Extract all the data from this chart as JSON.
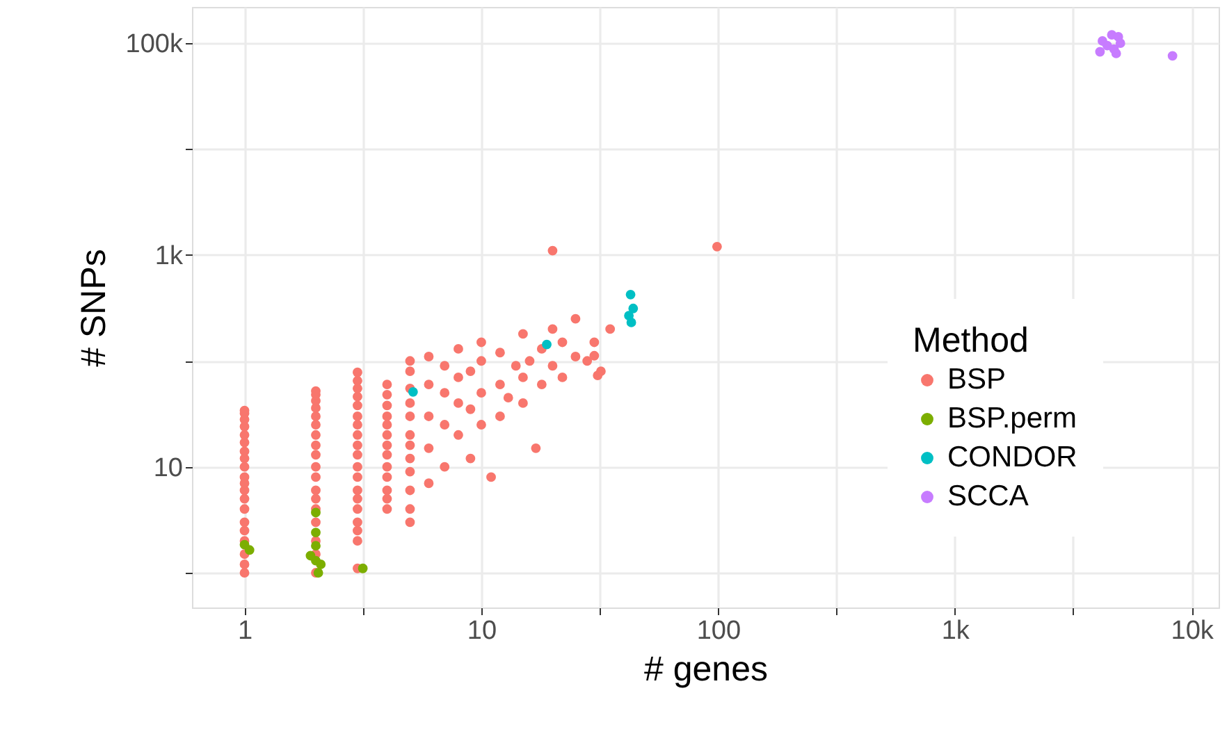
{
  "chart_data": {
    "type": "scatter",
    "xlabel": "# genes",
    "ylabel": "# SNPs",
    "legend_title": "Method",
    "legend": "right",
    "grid": true,
    "marker": "circle",
    "log": "xy",
    "xlim": [
      0.6,
      13000
    ],
    "ylim": [
      0.47,
      220000
    ],
    "xticks": [
      1,
      {
        "value": 3.16,
        "label": null
      },
      10,
      {
        "value": 31.6,
        "label": null
      },
      100,
      {
        "value": 316,
        "label": null
      },
      {
        "value": 1000,
        "label": "1k"
      },
      {
        "value": 3162,
        "label": null
      },
      {
        "value": 10000,
        "label": "10k"
      }
    ],
    "yticks": [
      {
        "value": 1,
        "label": null
      },
      10,
      {
        "value": 100,
        "label": null
      },
      {
        "value": 1000,
        "label": "1k"
      },
      {
        "value": 10000,
        "label": null
      },
      {
        "value": 100000,
        "label": "100k"
      }
    ],
    "series": [
      {
        "name": "BSP",
        "color": "#f8766d",
        "x": [
          1,
          1,
          1,
          1,
          1,
          1,
          1,
          1,
          1,
          1,
          1,
          1,
          1,
          1,
          1,
          1,
          1,
          1,
          1,
          1,
          2,
          2,
          2,
          2,
          2,
          2,
          2,
          2,
          2,
          2,
          2,
          2,
          2,
          2,
          2,
          2,
          2,
          2,
          3,
          3,
          3,
          3,
          3,
          3,
          3,
          3,
          3,
          3,
          3,
          3,
          3,
          3,
          3,
          3,
          3,
          3,
          3,
          4,
          4,
          4,
          4,
          4,
          4,
          4,
          4,
          4,
          4,
          4,
          4,
          4,
          5,
          5,
          5,
          5,
          5,
          5,
          5,
          5,
          5,
          5,
          5,
          5,
          6,
          6,
          6,
          6,
          6,
          7,
          7,
          7,
          7,
          8,
          8,
          8,
          8,
          9,
          9,
          9,
          10,
          10,
          10,
          10,
          11,
          12,
          12,
          12,
          13,
          14,
          15,
          15,
          15,
          16,
          17,
          18,
          18,
          20,
          20,
          22,
          22,
          25,
          25,
          28,
          30,
          32,
          20,
          99,
          31,
          30,
          35
        ],
        "values": [
          1,
          1.2,
          1.5,
          2,
          2.5,
          3,
          4,
          5,
          6,
          7,
          8,
          10,
          12,
          14,
          17,
          20,
          24,
          28,
          32,
          34,
          1,
          1.5,
          2,
          3,
          4,
          5,
          6,
          8,
          10,
          13,
          16,
          20,
          25,
          30,
          36,
          42,
          48,
          52,
          1.1,
          2,
          2.5,
          3,
          4,
          5,
          6,
          8,
          10,
          13,
          16,
          20,
          25,
          30,
          38,
          46,
          55,
          65,
          78,
          4,
          5,
          6,
          8,
          10,
          13,
          16,
          20,
          25,
          30,
          38,
          48,
          60,
          3,
          4,
          6,
          9,
          12,
          16,
          20,
          30,
          40,
          55,
          80,
          100,
          7,
          15,
          30,
          60,
          110,
          10,
          25,
          50,
          90,
          20,
          40,
          70,
          130,
          12,
          35,
          80,
          25,
          50,
          100,
          150,
          8,
          30,
          60,
          120,
          45,
          90,
          40,
          70,
          180,
          100,
          15,
          60,
          130,
          90,
          200,
          70,
          150,
          110,
          250,
          100,
          150,
          80,
          1100,
          1200,
          73,
          112,
          200
        ]
      },
      {
        "name": "BSP.perm",
        "color": "#7cae00",
        "x": [
          1,
          1.05,
          2,
          2,
          2,
          2,
          1.9,
          2.05,
          2.1,
          3.16
        ],
        "values": [
          1.84,
          1.64,
          3.7,
          2.4,
          1.8,
          1.3,
          1.45,
          1.0,
          1.2,
          1.1
        ]
      },
      {
        "name": "CONDOR",
        "color": "#00bfc4",
        "x": [
          5.15,
          18.9,
          42.7,
          43.8,
          42,
          43
        ],
        "values": [
          51,
          143,
          423,
          313,
          268,
          231
        ]
      },
      {
        "name": "SCCA",
        "color": "#c77cff",
        "x": [
          4100,
          4800,
          4600,
          4900,
          5000,
          4400,
          4700,
          4200,
          8300
        ],
        "values": [
          83000,
          80000,
          120000,
          115000,
          100000,
          95000,
          88000,
          105000,
          76000
        ]
      }
    ]
  }
}
